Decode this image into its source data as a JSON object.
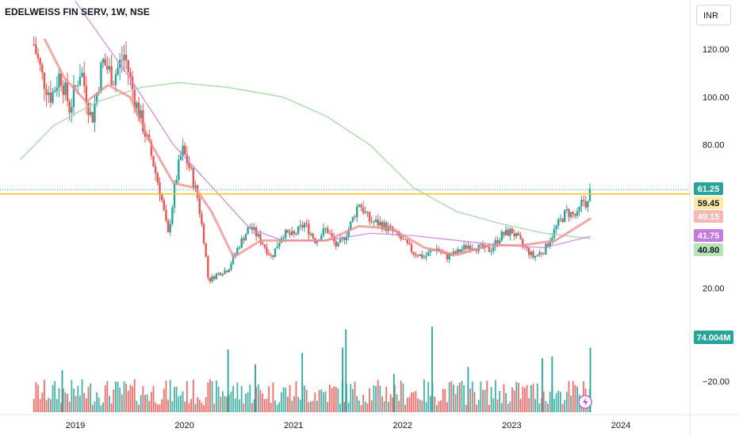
{
  "header": {
    "title": "EDELWEISS FIN SERV, 1W, NSE",
    "currency_button": "INR"
  },
  "colors": {
    "up": "#26a69a",
    "down": "#ef5350",
    "volume_up": "#26a69a",
    "volume_down": "#ef5350",
    "ma_fast": "#f28b8b",
    "ma_mid": "#c77be0",
    "ma_slow": "#a8d8a8",
    "level_line": "#f7c21a"
  },
  "chart_data": {
    "type": "candlestick",
    "x_ticks": [
      "2019",
      "2020",
      "2021",
      "2022",
      "2023",
      "2024"
    ],
    "y_ticks": [
      120,
      100,
      80,
      20
    ],
    "y_tick_labels": [
      "120.00",
      "100.00",
      "80.00",
      "20.00"
    ],
    "ylim": [
      15,
      135
    ],
    "volume_axis_tick": "−20.00",
    "horizontal_level": 59.45,
    "price_tags": [
      {
        "label": "61.25",
        "value": 61.25,
        "bg": "#26a69a",
        "fg": "#ffffff"
      },
      {
        "label": "59.45",
        "value": 59.45,
        "bg": "#ffe9a3",
        "fg": "#131722"
      },
      {
        "label": "49.15",
        "value": 49.15,
        "bg": "#f6b7b7",
        "fg": "#ffffff"
      },
      {
        "label": "41.75",
        "value": 41.75,
        "bg": "#c77be0",
        "fg": "#ffffff"
      },
      {
        "label": "40.80",
        "value": 40.8,
        "bg": "#b5e3b5",
        "fg": "#131722"
      }
    ],
    "volume_tag": {
      "label": "74.004M",
      "bg": "#26a69a",
      "fg": "#ffffff"
    },
    "price_path": [
      {
        "x": 2018.62,
        "y": 122
      },
      {
        "x": 2018.7,
        "y": 108
      },
      {
        "x": 2018.78,
        "y": 100
      },
      {
        "x": 2018.86,
        "y": 110
      },
      {
        "x": 2018.95,
        "y": 95
      },
      {
        "x": 2019.05,
        "y": 112
      },
      {
        "x": 2019.15,
        "y": 90
      },
      {
        "x": 2019.25,
        "y": 115
      },
      {
        "x": 2019.35,
        "y": 108
      },
      {
        "x": 2019.45,
        "y": 118
      },
      {
        "x": 2019.55,
        "y": 98
      },
      {
        "x": 2019.62,
        "y": 88
      },
      {
        "x": 2019.7,
        "y": 75
      },
      {
        "x": 2019.78,
        "y": 60
      },
      {
        "x": 2019.85,
        "y": 42
      },
      {
        "x": 2019.92,
        "y": 65
      },
      {
        "x": 2019.98,
        "y": 78
      },
      {
        "x": 2020.05,
        "y": 70
      },
      {
        "x": 2020.12,
        "y": 58
      },
      {
        "x": 2020.18,
        "y": 40
      },
      {
        "x": 2020.22,
        "y": 23
      },
      {
        "x": 2020.3,
        "y": 26
      },
      {
        "x": 2020.4,
        "y": 28
      },
      {
        "x": 2020.5,
        "y": 38
      },
      {
        "x": 2020.6,
        "y": 46
      },
      {
        "x": 2020.7,
        "y": 40
      },
      {
        "x": 2020.8,
        "y": 33
      },
      {
        "x": 2020.9,
        "y": 43
      },
      {
        "x": 2021.0,
        "y": 42
      },
      {
        "x": 2021.1,
        "y": 47
      },
      {
        "x": 2021.2,
        "y": 40
      },
      {
        "x": 2021.3,
        "y": 45
      },
      {
        "x": 2021.4,
        "y": 37
      },
      {
        "x": 2021.5,
        "y": 44
      },
      {
        "x": 2021.6,
        "y": 56
      },
      {
        "x": 2021.7,
        "y": 48
      },
      {
        "x": 2021.8,
        "y": 47
      },
      {
        "x": 2021.9,
        "y": 44
      },
      {
        "x": 2022.0,
        "y": 40
      },
      {
        "x": 2022.1,
        "y": 35
      },
      {
        "x": 2022.2,
        "y": 33
      },
      {
        "x": 2022.3,
        "y": 37
      },
      {
        "x": 2022.4,
        "y": 33
      },
      {
        "x": 2022.5,
        "y": 35
      },
      {
        "x": 2022.6,
        "y": 38
      },
      {
        "x": 2022.7,
        "y": 37
      },
      {
        "x": 2022.8,
        "y": 36
      },
      {
        "x": 2022.9,
        "y": 42
      },
      {
        "x": 2023.0,
        "y": 44
      },
      {
        "x": 2023.1,
        "y": 38
      },
      {
        "x": 2023.2,
        "y": 33
      },
      {
        "x": 2023.3,
        "y": 36
      },
      {
        "x": 2023.4,
        "y": 45
      },
      {
        "x": 2023.5,
        "y": 52
      },
      {
        "x": 2023.6,
        "y": 50
      },
      {
        "x": 2023.65,
        "y": 57
      },
      {
        "x": 2023.7,
        "y": 55
      },
      {
        "x": 2023.72,
        "y": 61.25
      }
    ],
    "ma_fast": [
      {
        "x": 2018.72,
        "y": 124
      },
      {
        "x": 2018.9,
        "y": 108
      },
      {
        "x": 2019.1,
        "y": 98
      },
      {
        "x": 2019.3,
        "y": 105
      },
      {
        "x": 2019.5,
        "y": 100
      },
      {
        "x": 2019.7,
        "y": 80
      },
      {
        "x": 2019.9,
        "y": 64
      },
      {
        "x": 2020.1,
        "y": 62
      },
      {
        "x": 2020.25,
        "y": 52
      },
      {
        "x": 2020.45,
        "y": 33
      },
      {
        "x": 2020.7,
        "y": 40
      },
      {
        "x": 2021.0,
        "y": 40
      },
      {
        "x": 2021.3,
        "y": 40
      },
      {
        "x": 2021.6,
        "y": 46
      },
      {
        "x": 2021.9,
        "y": 45
      },
      {
        "x": 2022.2,
        "y": 37
      },
      {
        "x": 2022.5,
        "y": 34
      },
      {
        "x": 2022.8,
        "y": 38
      },
      {
        "x": 2023.1,
        "y": 38
      },
      {
        "x": 2023.4,
        "y": 40
      },
      {
        "x": 2023.72,
        "y": 49.15
      }
    ],
    "ma_mid": [
      {
        "x": 2019.0,
        "y": 140
      },
      {
        "x": 2019.5,
        "y": 108
      },
      {
        "x": 2019.9,
        "y": 80
      },
      {
        "x": 2020.3,
        "y": 60
      },
      {
        "x": 2020.6,
        "y": 45
      },
      {
        "x": 2020.9,
        "y": 40
      },
      {
        "x": 2021.3,
        "y": 40
      },
      {
        "x": 2021.7,
        "y": 43
      },
      {
        "x": 2022.1,
        "y": 42
      },
      {
        "x": 2022.5,
        "y": 40
      },
      {
        "x": 2022.9,
        "y": 38
      },
      {
        "x": 2023.3,
        "y": 37
      },
      {
        "x": 2023.72,
        "y": 41.75
      }
    ],
    "ma_slow": [
      {
        "x": 2018.5,
        "y": 74
      },
      {
        "x": 2018.8,
        "y": 88
      },
      {
        "x": 2019.2,
        "y": 98
      },
      {
        "x": 2019.6,
        "y": 104
      },
      {
        "x": 2019.95,
        "y": 106
      },
      {
        "x": 2020.4,
        "y": 104
      },
      {
        "x": 2020.9,
        "y": 100
      },
      {
        "x": 2021.3,
        "y": 92
      },
      {
        "x": 2021.7,
        "y": 80
      },
      {
        "x": 2022.1,
        "y": 62
      },
      {
        "x": 2022.5,
        "y": 52
      },
      {
        "x": 2022.9,
        "y": 47
      },
      {
        "x": 2023.3,
        "y": 43
      },
      {
        "x": 2023.72,
        "y": 40.8
      }
    ],
    "volume_spikes": [
      {
        "x": 2021.45,
        "v": 74
      },
      {
        "x": 2021.48,
        "v": 95
      },
      {
        "x": 2022.27,
        "v": 98
      },
      {
        "x": 2021.08,
        "v": 68
      },
      {
        "x": 2023.28,
        "v": 62
      },
      {
        "x": 2023.37,
        "v": 64
      },
      {
        "x": 2023.72,
        "v": 74
      },
      {
        "x": 2020.4,
        "v": 72
      },
      {
        "x": 2018.88,
        "v": 48
      },
      {
        "x": 2020.65,
        "v": 55
      },
      {
        "x": 2021.92,
        "v": 44
      },
      {
        "x": 2022.6,
        "v": 52
      }
    ]
  }
}
